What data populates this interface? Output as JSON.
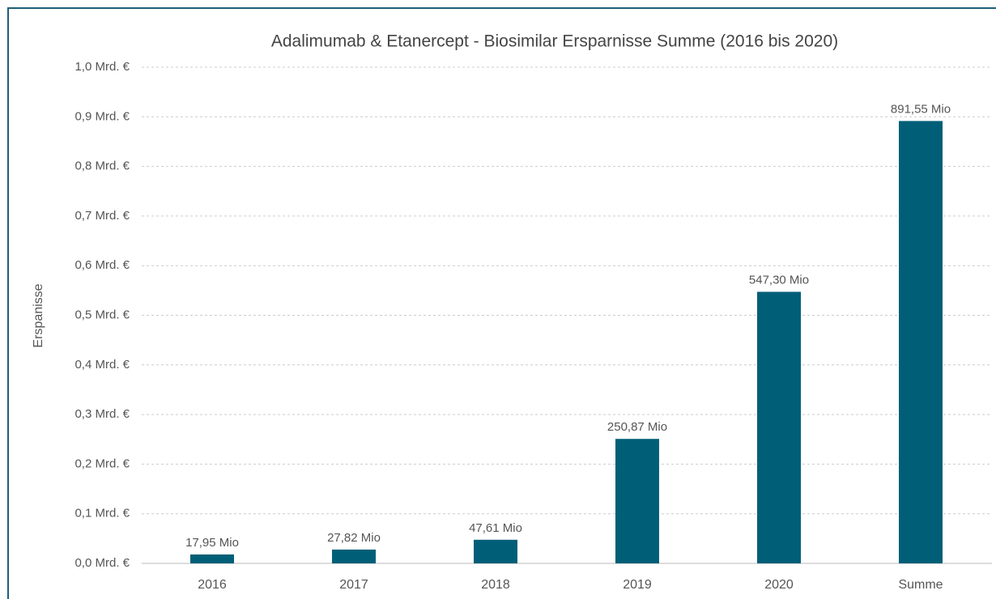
{
  "chart_data": {
    "type": "bar",
    "title": "Adalimumab & Etanercept - Biosimilar Ersparnisse Summe (2016 bis 2020)",
    "y_label": "Erspanisse",
    "categories": [
      "2016",
      "2017",
      "2018",
      "2019",
      "2020",
      "Summe"
    ],
    "values": [
      0.01795,
      0.02782,
      0.04761,
      0.25087,
      0.5473,
      0.89155
    ],
    "value_labels": [
      "17,95 Mio",
      "27,82 Mio",
      "47,61 Mio",
      "250,87 Mio",
      "547,30 Mio",
      "891,55 Mio"
    ],
    "color": "#005f77",
    "ylim": [
      0,
      1.0
    ],
    "yticks": [
      {
        "value": 0,
        "label": "0,0 Mrd. €"
      },
      {
        "value": 0.1,
        "label": "0,1 Mrd. €"
      },
      {
        "value": 0.2,
        "label": "0,2 Mrd. €"
      },
      {
        "value": 0.3,
        "label": "0,3 Mrd. €"
      },
      {
        "value": 0.4,
        "label": "0,4 Mrd. €"
      },
      {
        "value": 0.5,
        "label": "0,5 Mrd. €"
      },
      {
        "value": 0.6,
        "label": "0,6 Mrd. €"
      },
      {
        "value": 0.7,
        "label": "0,7 Mrd. €"
      },
      {
        "value": 0.8,
        "label": "0,8 Mrd. €"
      },
      {
        "value": 0.9,
        "label": "0,9 Mrd. €"
      },
      {
        "value": 1.0,
        "label": "1,0 Mrd. €"
      }
    ],
    "grid": true
  }
}
